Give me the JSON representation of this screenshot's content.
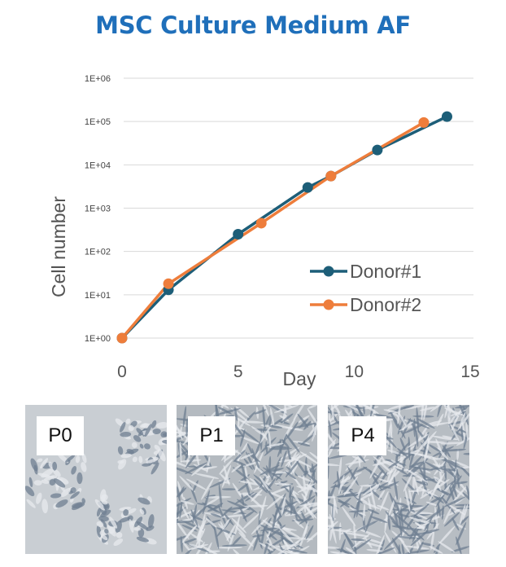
{
  "title": "MSC Culture Medium AF",
  "colors": {
    "title": "#1f6fba",
    "donor1": "#1d5e78",
    "donor2": "#ee7d3b",
    "grid": "#d9d9d9",
    "panel_p0": "#c9ced3",
    "panel_p1": "#b4bac0",
    "panel_p4": "#b7bdc3"
  },
  "chart_data": {
    "type": "line",
    "xlabel": "Day",
    "ylabel": "Cell number",
    "x_ticks": [
      "0",
      "5",
      "10",
      "15"
    ],
    "xlim": [
      0,
      15
    ],
    "y_scale": "log",
    "y_tick_values": [
      1,
      10,
      100,
      1000,
      10000,
      100000,
      1000000
    ],
    "y_ticks": [
      "1E+00",
      "1E+01",
      "1E+02",
      "1E+03",
      "1E+04",
      "1E+05",
      "1E+06"
    ],
    "grid": "horizontal",
    "legend_position": "lower-right",
    "series": [
      {
        "name": "Donor#1",
        "x": [
          0,
          2,
          5,
          8,
          9,
          11,
          14
        ],
        "y": [
          1,
          13,
          250,
          3000,
          5500,
          22000,
          130000
        ]
      },
      {
        "name": "Donor#2",
        "x": [
          0,
          2,
          6,
          9,
          13
        ],
        "y": [
          1,
          18,
          450,
          5500,
          95000
        ]
      }
    ]
  },
  "images": [
    {
      "label": "P0"
    },
    {
      "label": "P1"
    },
    {
      "label": "P4"
    }
  ]
}
